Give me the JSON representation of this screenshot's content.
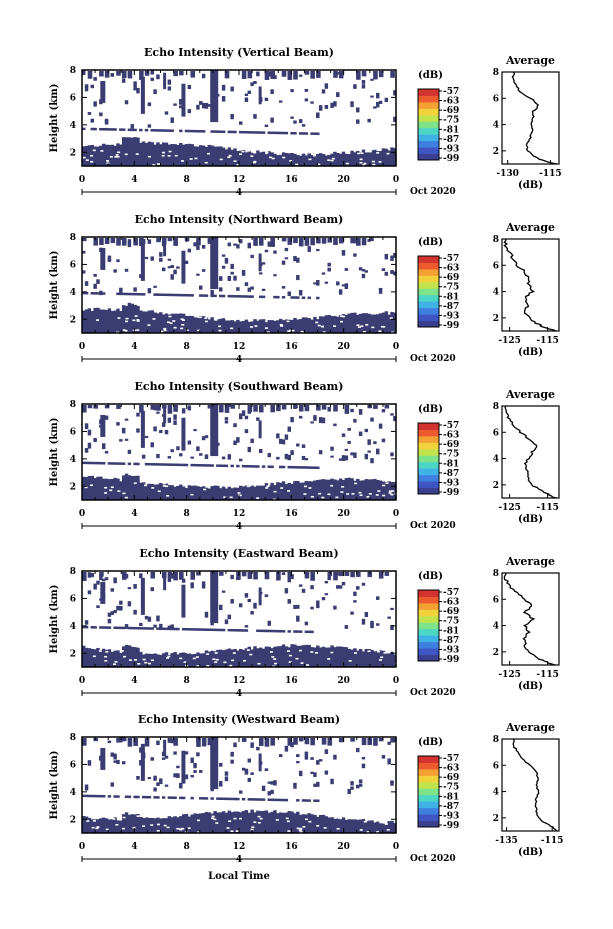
{
  "shared": {
    "ylabel": "Height (km)",
    "time_ticks": [
      "0",
      "4",
      "8",
      "12",
      "16",
      "20",
      "0"
    ],
    "date_tick": "4",
    "date_label": "Oct 2020",
    "colorbar_unit": "(dB)",
    "colorbar_ticks": [
      "-57",
      "-63",
      "-69",
      "-75",
      "-81",
      "-87",
      "-93",
      "-99"
    ],
    "height_ticks": [
      "2",
      "4",
      "6",
      "8"
    ],
    "avg_title": "Average",
    "avg_xlabel": "(dB)",
    "xlabel": "Local Time",
    "colors": {
      "fill": "#3a3c72",
      "frame": "#000000",
      "background": "#ffffff"
    },
    "colormap": [
      "#3b3f8f",
      "#3f55c4",
      "#3f7fe0",
      "#3fb2e6",
      "#4bd6c6",
      "#7fe38a",
      "#c2e34b",
      "#f2d23c",
      "#f5a033",
      "#ec5a2e",
      "#d1332e"
    ]
  },
  "chart_data": [
    {
      "type": "heatmap",
      "title": "Echo Intensity (Vertical Beam)",
      "xlabel": "Local Time",
      "ylabel": "Height (km)",
      "x_range_hours": [
        0,
        24
      ],
      "y_range_km": [
        1,
        8
      ],
      "x_ticks": [
        0,
        4,
        8,
        12,
        16,
        20,
        24
      ],
      "colorbar_range_db": [
        -99,
        -57
      ],
      "average_profile": {
        "title": "Average",
        "xlabel": "(dB)",
        "x_ticks": [
          "-130",
          "-115"
        ],
        "xlim": [
          -132,
          -112
        ],
        "height_km": [
          1,
          1.3,
          1.6,
          2,
          2.5,
          3,
          3.5,
          4,
          4.5,
          5,
          5.5,
          6,
          6.5,
          7,
          7.5,
          8
        ],
        "db": [
          -113,
          -118,
          -121,
          -123,
          -123,
          -122,
          -121,
          -122,
          -121,
          -121,
          -119,
          -122,
          -126,
          -127,
          -128,
          -128
        ]
      },
      "date_label": "Oct 2020",
      "date_tick": "4"
    },
    {
      "type": "heatmap",
      "title": "Echo Intensity (Northward Beam)",
      "xlabel": "Local Time",
      "ylabel": "Height (km)",
      "x_range_hours": [
        0,
        24
      ],
      "y_range_km": [
        1,
        8
      ],
      "x_ticks": [
        0,
        4,
        8,
        12,
        16,
        20,
        24
      ],
      "colorbar_range_db": [
        -99,
        -57
      ],
      "average_profile": {
        "title": "Average",
        "xlabel": "(dB)",
        "x_ticks": [
          "-125",
          "-115"
        ],
        "xlim": [
          -127,
          -112
        ],
        "height_km": [
          1,
          1.3,
          1.6,
          2,
          2.5,
          3,
          3.5,
          4,
          4.5,
          5,
          5.5,
          6,
          6.5,
          7,
          7.5,
          8
        ],
        "db": [
          -113,
          -116,
          -118,
          -120,
          -121,
          -120,
          -121,
          -119,
          -120,
          -120,
          -121,
          -123,
          -124,
          -125,
          -126,
          -126
        ]
      },
      "date_label": "Oct 2020",
      "date_tick": "4"
    },
    {
      "type": "heatmap",
      "title": "Echo Intensity (Southward Beam)",
      "xlabel": "Local Time",
      "ylabel": "Height (km)",
      "x_range_hours": [
        0,
        24
      ],
      "y_range_km": [
        1,
        8
      ],
      "x_ticks": [
        0,
        4,
        8,
        12,
        16,
        20,
        24
      ],
      "colorbar_range_db": [
        -99,
        -57
      ],
      "average_profile": {
        "title": "Average",
        "xlabel": "(dB)",
        "x_ticks": [
          "-125",
          "-115"
        ],
        "xlim": [
          -127,
          -112
        ],
        "height_km": [
          1,
          1.3,
          1.6,
          2,
          2.5,
          3,
          3.5,
          4,
          4.5,
          5,
          5.5,
          6,
          6.5,
          7,
          7.5,
          8
        ],
        "db": [
          -113,
          -115,
          -117,
          -119,
          -120,
          -120,
          -121,
          -120,
          -119,
          -118,
          -120,
          -122,
          -124,
          -125,
          -126,
          -126
        ]
      },
      "date_label": "Oct 2020",
      "date_tick": "4"
    },
    {
      "type": "heatmap",
      "title": "Echo Intensity (Eastward Beam)",
      "xlabel": "Local Time",
      "ylabel": "Height (km)",
      "x_range_hours": [
        0,
        24
      ],
      "y_range_km": [
        1,
        8
      ],
      "x_ticks": [
        0,
        4,
        8,
        12,
        16,
        20,
        24
      ],
      "colorbar_range_db": [
        -99,
        -57
      ],
      "average_profile": {
        "title": "Average",
        "xlabel": "(dB)",
        "x_ticks": [
          "-125",
          "-115"
        ],
        "xlim": [
          -127,
          -112
        ],
        "height_km": [
          1,
          1.3,
          1.6,
          2,
          2.5,
          3,
          3.5,
          4,
          4.5,
          5,
          5.5,
          6,
          6.5,
          7,
          7.5,
          8
        ],
        "db": [
          -113,
          -116,
          -118,
          -120,
          -121,
          -121,
          -120,
          -121,
          -119,
          -121,
          -119,
          -121,
          -123,
          -125,
          -126,
          -126
        ]
      },
      "date_label": "Oct 2020",
      "date_tick": "4"
    },
    {
      "type": "heatmap",
      "title": "Echo Intensity (Westward Beam)",
      "xlabel": "Local Time",
      "ylabel": "Height (km)",
      "x_range_hours": [
        0,
        24
      ],
      "y_range_km": [
        1,
        8
      ],
      "x_ticks": [
        0,
        4,
        8,
        12,
        16,
        20,
        24
      ],
      "colorbar_range_db": [
        -99,
        -57
      ],
      "average_profile": {
        "title": "Average",
        "xlabel": "(dB)",
        "x_ticks": [
          "-135",
          "-115"
        ],
        "xlim": [
          -137,
          -112
        ],
        "height_km": [
          1,
          1.3,
          1.6,
          2,
          2.5,
          3,
          3.5,
          4,
          4.5,
          5,
          5.5,
          6,
          6.5,
          7,
          7.5,
          8
        ],
        "db": [
          -113,
          -115,
          -118,
          -121,
          -122,
          -122,
          -122,
          -121,
          -122,
          -121,
          -122,
          -125,
          -128,
          -130,
          -132,
          -132
        ]
      },
      "date_label": "Oct 2020",
      "date_tick": "4"
    }
  ]
}
